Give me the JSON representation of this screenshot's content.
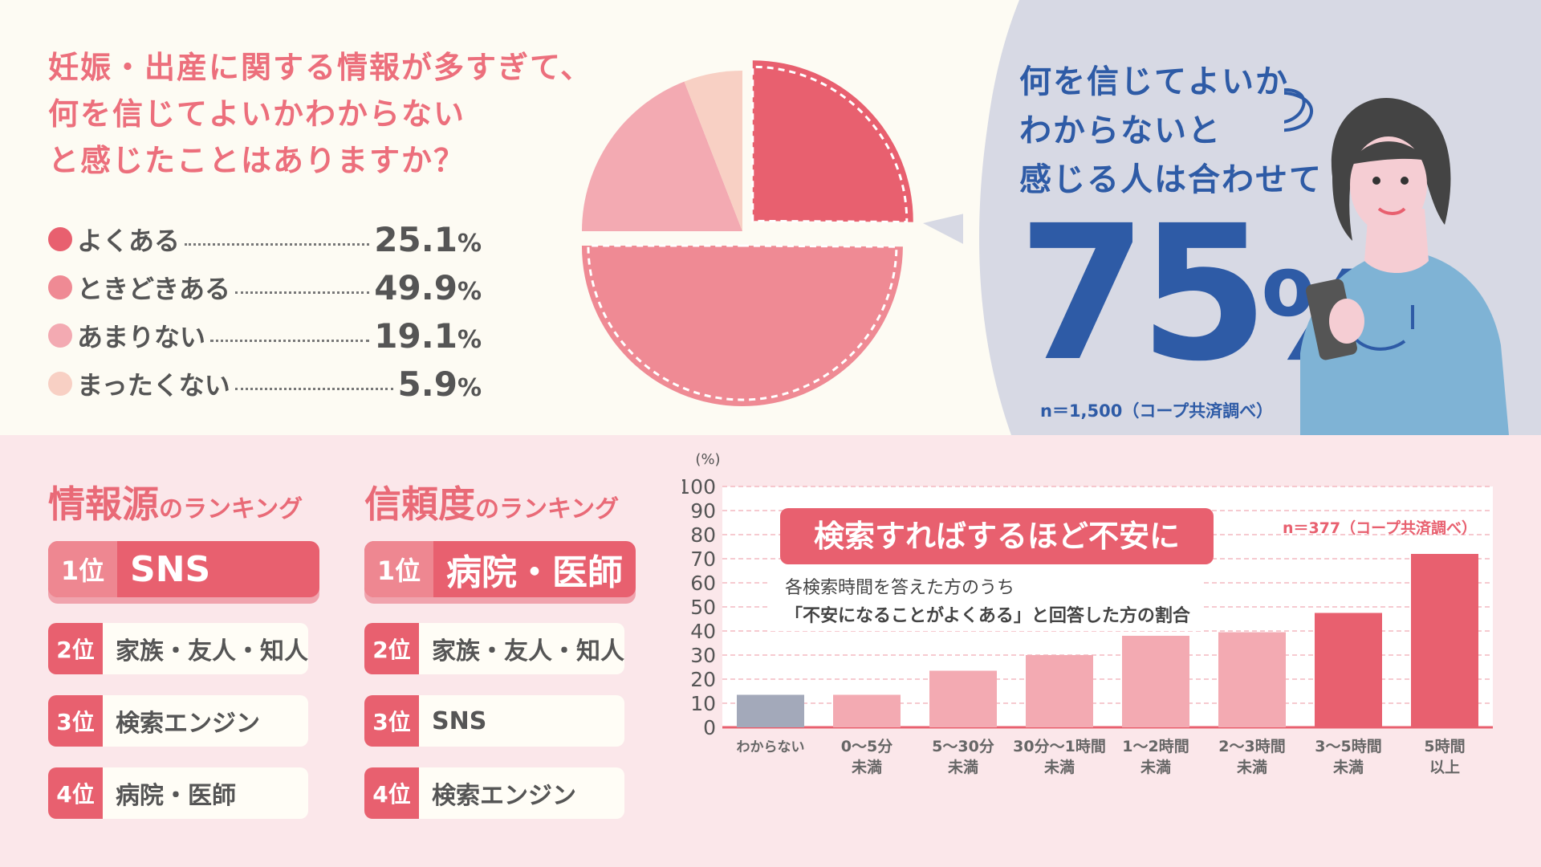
{
  "question": [
    "妊娠・出産に関する情報が多すぎて、",
    "何を信じてよいかわからない",
    "と感じたことはありますか？"
  ],
  "legend": [
    {
      "label": "よくある",
      "value": "25.1",
      "unit": "%",
      "color": "#e8606f"
    },
    {
      "label": "ときどきある",
      "value": "49.9",
      "unit": "%",
      "color": "#ef8a94"
    },
    {
      "label": "あまりない",
      "value": "19.1",
      "unit": "%",
      "color": "#f3aab2"
    },
    {
      "label": "まったくない",
      "value": "5.9",
      "unit": "%",
      "color": "#f8d0c4"
    }
  ],
  "callout": {
    "lines": [
      "何を信じてよいか",
      "わからないと",
      "感じる人は合わせて"
    ],
    "number": "75",
    "unit": "%",
    "note": "n＝1,500（コープ共済調べ）"
  },
  "ranking_source": {
    "title_main": "情報源",
    "title_small": "のランキング",
    "items": [
      {
        "rank": "1位",
        "name": "SNS"
      },
      {
        "rank": "2位",
        "name": "家族・友人・知人"
      },
      {
        "rank": "3位",
        "name": "検索エンジン"
      },
      {
        "rank": "4位",
        "name": "病院・医師"
      }
    ]
  },
  "ranking_trust": {
    "title_main": "信頼度",
    "title_small": "のランキング",
    "items": [
      {
        "rank": "1位",
        "name": "病院・医師"
      },
      {
        "rank": "2位",
        "name": "家族・友人・知人"
      },
      {
        "rank": "3位",
        "name": "SNS"
      },
      {
        "rank": "4位",
        "name": "検索エンジン"
      }
    ]
  },
  "chart_data": [
    {
      "type": "pie",
      "categories": [
        "よくある",
        "ときどきある",
        "あまりない",
        "まったくない"
      ],
      "values": [
        25.1,
        49.9,
        19.1,
        5.9
      ],
      "colors": [
        "#e8606f",
        "#ef8a94",
        "#f3aab2",
        "#f8d0c4"
      ]
    },
    {
      "type": "bar",
      "title": "検索すればするほど不安に",
      "subtitle_lines": [
        "各検索時間を答えた方のうち",
        "「不安になることがよくある」と回答した方の割合"
      ],
      "note": "n＝377（コープ共済調べ）",
      "ylabel": "(%)",
      "ylim": [
        0,
        100
      ],
      "yticks": [
        0,
        10,
        20,
        30,
        40,
        50,
        60,
        70,
        80,
        90,
        100
      ],
      "grid": true,
      "categories": [
        [
          "わからない"
        ],
        [
          "0〜5分",
          "未満"
        ],
        [
          "5〜30分",
          "未満"
        ],
        [
          "30分〜1時間",
          "未満"
        ],
        [
          "1〜2時間",
          "未満"
        ],
        [
          "2〜3時間",
          "未満"
        ],
        [
          "3〜5時間",
          "未満"
        ],
        [
          "5時間",
          "以上"
        ]
      ],
      "values": [
        13.5,
        13.5,
        23.5,
        30,
        38,
        39.5,
        47.5,
        72
      ],
      "colors": [
        "#a3a9ba",
        "#f3aab2",
        "#f3aab2",
        "#f3aab2",
        "#f3aab2",
        "#f3aab2",
        "#e8606f",
        "#e8606f"
      ]
    }
  ]
}
